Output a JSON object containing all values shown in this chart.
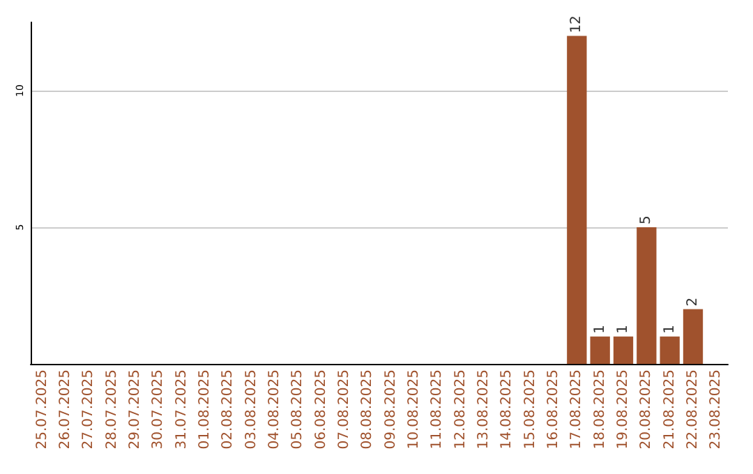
{
  "chart_data": {
    "type": "bar",
    "categories": [
      "25.07.2025",
      "26.07.2025",
      "27.07.2025",
      "28.07.2025",
      "29.07.2025",
      "30.07.2025",
      "31.07.2025",
      "01.08.2025",
      "02.08.2025",
      "03.08.2025",
      "04.08.2025",
      "05.08.2025",
      "06.08.2025",
      "07.08.2025",
      "08.08.2025",
      "09.08.2025",
      "10.08.2025",
      "11.08.2025",
      "12.08.2025",
      "13.08.2025",
      "14.08.2025",
      "15.08.2025",
      "16.08.2025",
      "17.08.2025",
      "18.08.2025",
      "19.08.2025",
      "20.08.2025",
      "21.08.2025",
      "22.08.2025",
      "23.08.2025"
    ],
    "values": [
      0,
      0,
      0,
      0,
      0,
      0,
      0,
      0,
      0,
      0,
      0,
      0,
      0,
      0,
      0,
      0,
      0,
      0,
      0,
      0,
      0,
      0,
      0,
      12,
      1,
      1,
      5,
      1,
      2,
      0
    ],
    "value_labels": [
      null,
      null,
      null,
      null,
      null,
      null,
      null,
      null,
      null,
      null,
      null,
      null,
      null,
      null,
      null,
      null,
      null,
      null,
      null,
      null,
      null,
      null,
      null,
      "12",
      "1",
      "1",
      "5",
      "1",
      "2",
      null
    ],
    "color": "#a0522d",
    "ylim": [
      0,
      12.5
    ],
    "yticks": [
      5,
      10
    ],
    "grid": "y"
  }
}
